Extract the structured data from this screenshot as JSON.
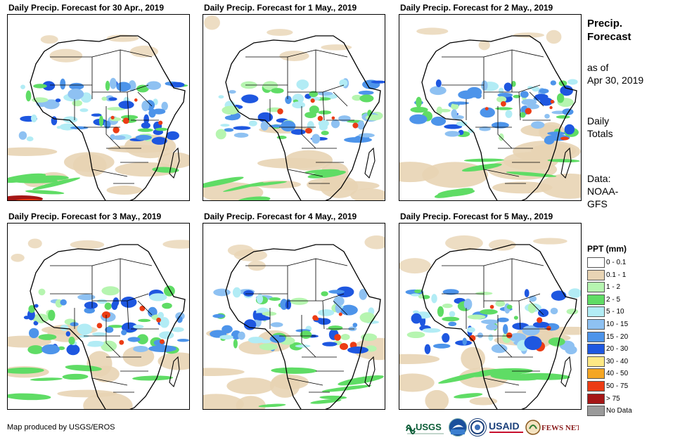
{
  "panels": [
    {
      "title": "Daily Precip. Forecast for 30 Apr., 2019"
    },
    {
      "title": "Daily Precip. Forecast for 1 May., 2019"
    },
    {
      "title": "Daily Precip. Forecast for 2 May., 2019"
    },
    {
      "title": "Daily Precip. Forecast for 3 May., 2019"
    },
    {
      "title": "Daily Precip. Forecast for 4 May., 2019"
    },
    {
      "title": "Daily Precip. Forecast for 5 May., 2019"
    }
  ],
  "sidebar": {
    "title_line1": "Precip.",
    "title_line2": "Forecast",
    "asof_line1": "as of",
    "asof_line2": "Apr 30, 2019",
    "daily_line1": "Daily",
    "daily_line2": "Totals",
    "data_line1": "Data:",
    "data_line2": "NOAA-",
    "data_line3": "GFS"
  },
  "legend": {
    "title": "PPT (mm)",
    "items": [
      {
        "label": "0 - 0.1",
        "color": "#ffffff"
      },
      {
        "label": "0.1 - 1",
        "color": "#e8d4b4"
      },
      {
        "label": "1 - 2",
        "color": "#b6f5b0"
      },
      {
        "label": "2 - 5",
        "color": "#5fdc65"
      },
      {
        "label": "5 - 10",
        "color": "#b2ecf5"
      },
      {
        "label": "10 - 15",
        "color": "#8ec1f2"
      },
      {
        "label": "15 - 20",
        "color": "#4d94ea"
      },
      {
        "label": "20 - 30",
        "color": "#1e57e0"
      },
      {
        "label": "30 - 40",
        "color": "#fde884"
      },
      {
        "label": "40 - 50",
        "color": "#f5a623"
      },
      {
        "label": "50 - 75",
        "color": "#ec3c14"
      },
      {
        "label": "> 75",
        "color": "#a51616"
      },
      {
        "label": "No Data",
        "color": "#9a9a9a"
      }
    ]
  },
  "credit": "Map produced by USGS/EROS",
  "logos": {
    "usgs": "USGS",
    "usaid": "USAID",
    "fews": "FEWS NET"
  }
}
